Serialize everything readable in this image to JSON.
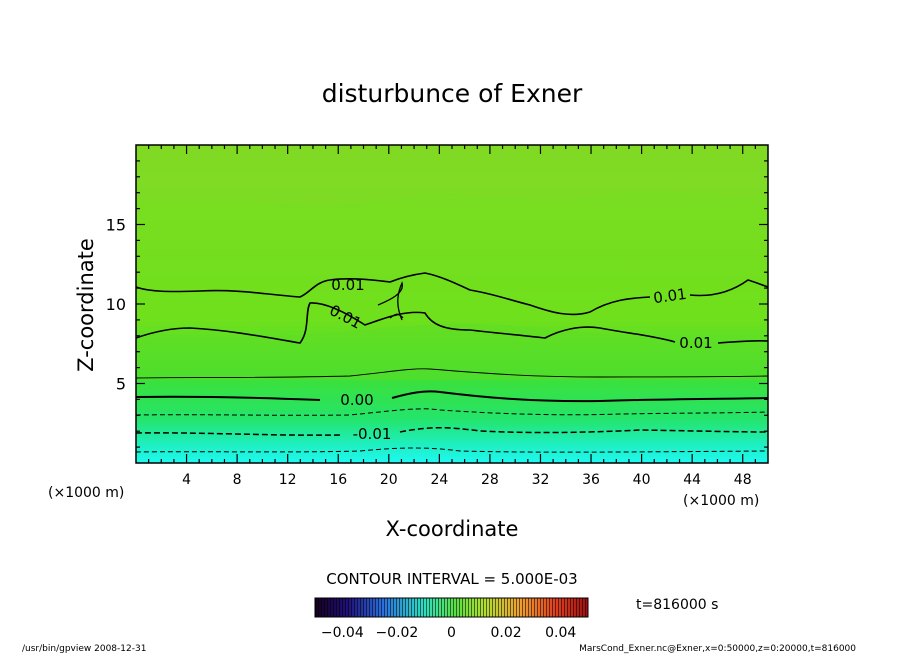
{
  "chart_data": {
    "type": "contour",
    "title": "disturbunce of Exner",
    "xlabel": "X-coordinate",
    "ylabel": "Z-coordinate",
    "x_unit_left": "(×1000 m)",
    "x_unit_right": "(×1000 m)",
    "xlim": [
      0,
      50
    ],
    "ylim": [
      0,
      20
    ],
    "x_ticks": [
      "4",
      "8",
      "12",
      "16",
      "20",
      "24",
      "28",
      "32",
      "36",
      "40",
      "44",
      "48"
    ],
    "y_ticks": [
      "5",
      "10",
      "15"
    ],
    "contour_labels": [
      "0.01",
      "0.01",
      "0.01",
      "0.01",
      "0.00",
      "-0.01"
    ],
    "contour_levels": [
      {
        "value": -0.01,
        "z_mean": 2.0
      },
      {
        "value": -0.005,
        "z_mean": 3.2
      },
      {
        "value": 0.0,
        "z_mean": 4.2
      },
      {
        "value": 0.005,
        "z_mean": 5.2
      },
      {
        "value": 0.01,
        "z_mean": 8.5
      },
      {
        "value": 0.01,
        "z_mean": 10.8
      }
    ],
    "contour_interval": "CONTOUR INTERVAL = 5.000E-03",
    "time": "t=816000 s",
    "colorbar": {
      "ticks": [
        "−0.04",
        "−0.02",
        "0",
        "0.02",
        "0.04"
      ],
      "range": [
        -0.05,
        0.05
      ]
    },
    "footer_left": "/usr/bin/gpview   2008-12-31",
    "footer_right": "MarsCond_Exner.nc@Exner,x=0:50000,z=0:20000,t=816000",
    "colors": {
      "top": "#7fe01a",
      "mid": "#3ee036",
      "bottom": "#1ff6e8"
    }
  }
}
